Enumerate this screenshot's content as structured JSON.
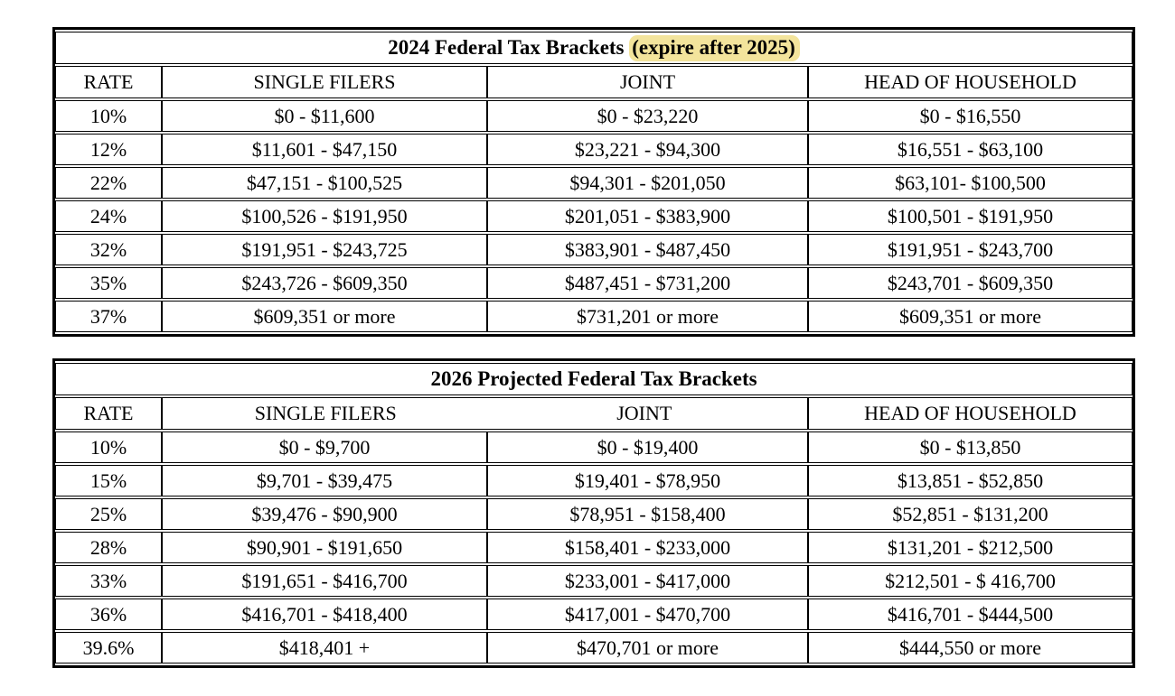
{
  "tables": [
    {
      "title": {
        "prefix": "2024 Federal Tax Brackets ",
        "highlight": "(expire after 2025)",
        "highlight_color": "#f3e49c"
      },
      "columns": [
        "RATE",
        "SINGLE FILERS",
        "JOINT",
        "HEAD OF HOUSEHOLD"
      ],
      "rows": [
        [
          "10%",
          "$0 - $11,600",
          "$0 - $23,220",
          "$0 - $16,550"
        ],
        [
          "12%",
          "$11,601 - $47,150",
          "$23,221 - $94,300",
          "$16,551 - $63,100"
        ],
        [
          "22%",
          "$47,151 - $100,525",
          "$94,301 - $201,050",
          "$63,101- $100,500"
        ],
        [
          "24%",
          "$100,526 - $191,950",
          "$201,051 - $383,900",
          "$100,501 - $191,950"
        ],
        [
          "32%",
          "$191,951 - $243,725",
          "$383,901 - $487,450",
          "$191,951 - $243,700"
        ],
        [
          "35%",
          "$243,726 - $609,350",
          "$487,451 - $731,200",
          "$243,701 - $609,350"
        ],
        [
          "37%",
          "$609,351 or more",
          "$731,201 or more",
          "$609,351 or more"
        ]
      ]
    },
    {
      "title": {
        "prefix": "2026 Projected Federal Tax Brackets",
        "highlight": ""
      },
      "columns": [
        "RATE",
        "SINGLE FILERS",
        "JOINT",
        "HEAD OF HOUSEHOLD"
      ],
      "rows": [
        [
          "10%",
          "$0 - $9,700",
          "$0 - $19,400",
          "$0 - $13,850"
        ],
        [
          "15%",
          "$9,701 - $39,475",
          "$19,401 - $78,950",
          "$13,851 - $52,850"
        ],
        [
          "25%",
          "$39,476 - $90,900",
          "$78,951 - $158,400",
          "$52,851 - $131,200"
        ],
        [
          "28%",
          "$90,901 - $191,650",
          "$158,401 - $233,000",
          "$131,201 - $212,500"
        ],
        [
          "33%",
          "$191,651 - $416,700",
          "$233,001 - $417,000",
          "$212,501 - $ 416,700"
        ],
        [
          "36%",
          "$416,701 - $418,400",
          "$417,001 - $470,700",
          "$416,701 - $444,500"
        ],
        [
          "39.6%",
          "$418,401 +",
          "$470,701 or more",
          "$444,550 or more"
        ]
      ]
    }
  ]
}
